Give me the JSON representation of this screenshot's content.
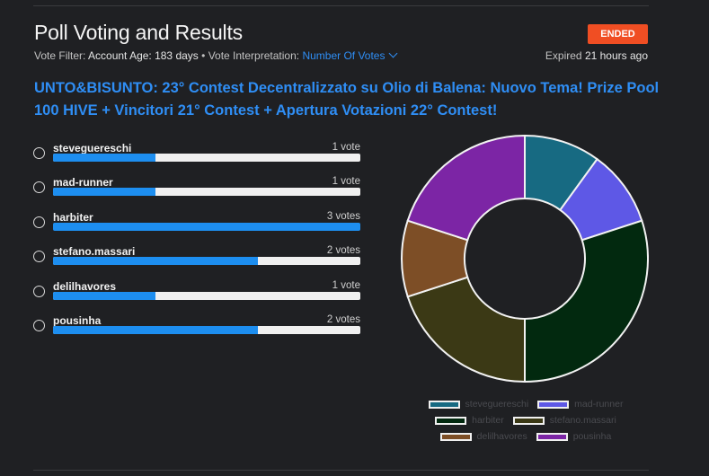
{
  "header": {
    "title": "Poll Voting and Results",
    "status": "ENDED",
    "vote_filter_label": "Vote Filter:",
    "vote_filter_value": "Account Age: 183 days",
    "separator": "•",
    "interpretation_label": "Vote Interpretation:",
    "interpretation_value": "Number Of Votes",
    "expired_label": "Expired",
    "expired_value": "21 hours ago"
  },
  "question": "UNTO&BISUNTO: 23° Contest Decentralizzato su Olio di Balena: Nuovo Tema! Prize Pool 100 HIVE + Vincitori 21° Contest + Apertura Votazioni 22° Contest!",
  "options": [
    {
      "name": "stevegueresch­i",
      "votes_label": "1 vote",
      "votes": 1,
      "fraction": 0.333
    },
    {
      "name": "mad-runner",
      "votes_label": "1 vote",
      "votes": 1,
      "fraction": 0.333
    },
    {
      "name": "harbiter",
      "votes_label": "3 votes",
      "votes": 3,
      "fraction": 1.0
    },
    {
      "name": "stefano.massari",
      "votes_label": "2 votes",
      "votes": 2,
      "fraction": 0.667
    },
    {
      "name": "delilhavores",
      "votes_label": "1 vote",
      "votes": 1,
      "fraction": 0.333
    },
    {
      "name": "pousinha",
      "votes_label": "2 votes",
      "votes": 2,
      "fraction": 0.667
    }
  ],
  "chart_data": {
    "type": "pie",
    "donut": true,
    "categories": [
      "steveguereschi",
      "mad-runner",
      "harbiter",
      "stefano.massari",
      "delilhavores",
      "pousinha"
    ],
    "values": [
      1,
      1,
      3,
      2,
      1,
      2
    ],
    "colors": [
      "#176a82",
      "#5e58e6",
      "#02290f",
      "#3b3915",
      "#7d4e26",
      "#7c25a5"
    ],
    "legend_position": "bottom"
  }
}
